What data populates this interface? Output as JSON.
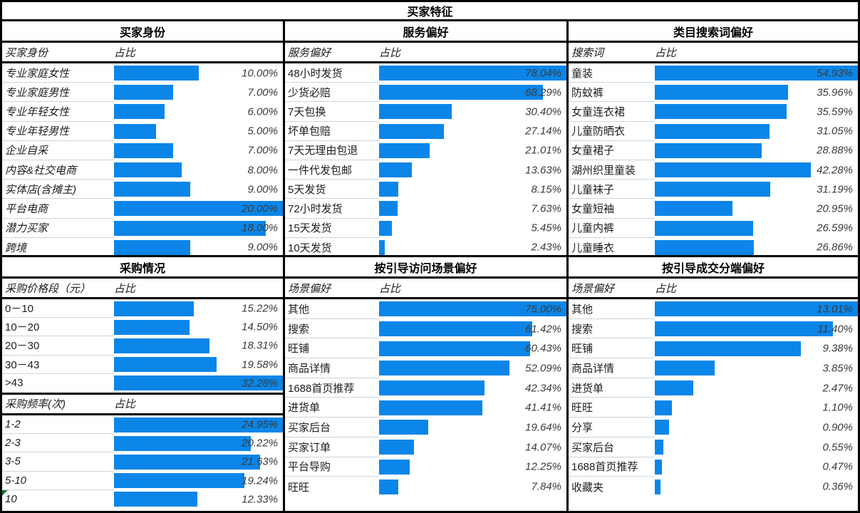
{
  "title": "买家特征",
  "sections": {
    "top_left": "买家身份",
    "top_mid": "服务偏好",
    "top_right": "类目搜索词偏好",
    "bottom_left": "采购情况",
    "bottom_mid": "按引导访问场景偏好",
    "bottom_right": "按引导成交分端偏好"
  },
  "colors": {
    "bar": "#0b86e8",
    "row_divider": "#ccd4dc",
    "border": "#000000",
    "percent_text": "#3a3a3a",
    "error_flag": "#177c2e"
  },
  "chart_data": [
    {
      "type": "bar",
      "title": "买家身份",
      "columns": [
        "买家身份",
        "占比"
      ],
      "categories": [
        "专业家庭女性",
        "专业家庭男性",
        "专业年轻女性",
        "专业年轻男性",
        "企业自采",
        "内容&社交电商",
        "实体店(含摊主)",
        "平台电商",
        "潜力买家",
        "跨境"
      ],
      "values": [
        10.0,
        7.0,
        6.0,
        5.0,
        7.0,
        8.0,
        9.0,
        20.0,
        18.0,
        9.0
      ],
      "value_labels": [
        "10.00%",
        "7.00%",
        "6.00%",
        "5.00%",
        "7.00%",
        "8.00%",
        "9.00%",
        "20.00%",
        "18.00%",
        "9.00%"
      ],
      "xmax": 20.0,
      "categories_italic": true
    },
    {
      "type": "bar",
      "title": "服务偏好",
      "columns": [
        "服务偏好",
        "占比"
      ],
      "categories": [
        "48小时发货",
        "少货必赔",
        "7天包换",
        "坏单包赔",
        "7天无理由包退",
        "一件代发包邮",
        "5天发货",
        "72小时发货",
        "15天发货",
        "10天发货"
      ],
      "values": [
        78.04,
        68.29,
        30.4,
        27.14,
        21.01,
        13.63,
        8.15,
        7.63,
        5.45,
        2.43
      ],
      "value_labels": [
        "78.04%",
        "68.29%",
        "30.40%",
        "27.14%",
        "21.01%",
        "13.63%",
        "8.15%",
        "7.63%",
        "5.45%",
        "2.43%"
      ],
      "xmax": 78.04,
      "categories_italic": false
    },
    {
      "type": "bar",
      "title": "类目搜索词偏好",
      "columns": [
        "搜索词",
        "占比"
      ],
      "categories": [
        "童装",
        "防蚊裤",
        "女童连衣裙",
        "儿童防晒衣",
        "女童裙子",
        "湖州织里童装",
        "儿童袜子",
        "女童短袖",
        "儿童内裤",
        "儿童睡衣"
      ],
      "values": [
        54.93,
        35.96,
        35.59,
        31.05,
        28.88,
        42.28,
        31.19,
        20.95,
        26.59,
        26.86
      ],
      "value_labels": [
        "54.93%",
        "35.96%",
        "35.59%",
        "31.05%",
        "28.88%",
        "42.28%",
        "31.19%",
        "20.95%",
        "26.59%",
        "26.86%"
      ],
      "xmax": 54.93,
      "categories_italic": false
    },
    {
      "type": "bar",
      "title": "采购价格段（元）",
      "columns": [
        "采购价格段（元）",
        "占比"
      ],
      "categories": [
        "0－10",
        "10－20",
        "20－30",
        "30－43",
        ">43"
      ],
      "values": [
        15.22,
        14.5,
        18.31,
        19.58,
        32.28
      ],
      "value_labels": [
        "15.22%",
        "14.50%",
        "18.31%",
        "19.58%",
        "32.28%"
      ],
      "xmax": 32.28,
      "categories_italic": false
    },
    {
      "type": "bar",
      "title": "采购频率(次)",
      "columns": [
        "采购频率(次)",
        "占比"
      ],
      "categories": [
        "1-2",
        "2-3",
        "3-5",
        "5-10",
        "10"
      ],
      "values": [
        24.95,
        20.22,
        21.63,
        19.24,
        12.33
      ],
      "value_labels": [
        "24.95%",
        "20.22%",
        "21.63%",
        "19.24%",
        "12.33%"
      ],
      "xmax": 24.95,
      "categories_italic": true,
      "flag_row": 4
    },
    {
      "type": "bar",
      "title": "按引导访问场景偏好",
      "columns": [
        "场景偏好",
        "占比"
      ],
      "categories": [
        "其他",
        "搜索",
        "旺铺",
        "商品详情",
        "1688首页推荐",
        "进货单",
        "买家后台",
        "买家订单",
        "平台导购",
        "旺旺"
      ],
      "values": [
        75.0,
        61.42,
        60.43,
        52.09,
        42.34,
        41.41,
        19.64,
        14.07,
        12.25,
        7.84
      ],
      "value_labels": [
        "75.00%",
        "61.42%",
        "60.43%",
        "52.09%",
        "42.34%",
        "41.41%",
        "19.64%",
        "14.07%",
        "12.25%",
        "7.84%"
      ],
      "xmax": 75.0,
      "categories_italic": false
    },
    {
      "type": "bar",
      "title": "按引导成交分端偏好",
      "columns": [
        "场景偏好",
        "占比"
      ],
      "categories": [
        "其他",
        "搜索",
        "旺铺",
        "商品详情",
        "进货单",
        "旺旺",
        "分享",
        "买家后台",
        "1688首页推荐",
        "收藏夹"
      ],
      "values": [
        13.01,
        11.4,
        9.38,
        3.85,
        2.47,
        1.1,
        0.9,
        0.55,
        0.47,
        0.36
      ],
      "value_labels": [
        "13.01%",
        "11.40%",
        "9.38%",
        "3.85%",
        "2.47%",
        "1.10%",
        "0.90%",
        "0.55%",
        "0.47%",
        "0.36%"
      ],
      "xmax": 13.01,
      "categories_italic": false
    }
  ]
}
